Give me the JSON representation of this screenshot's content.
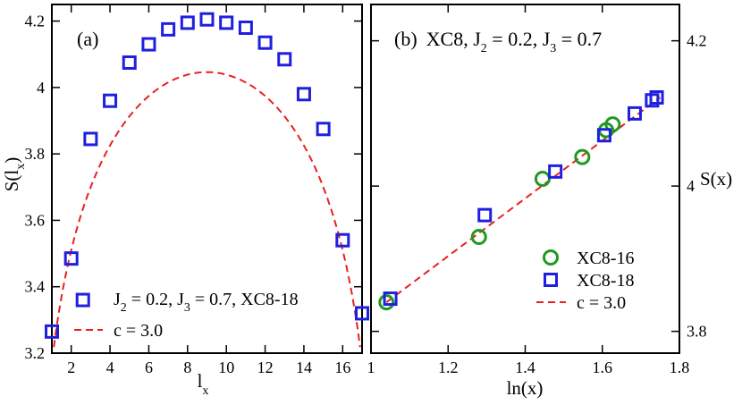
{
  "chart_data": [
    {
      "panel": "(a)",
      "type": "scatter",
      "title": "(a)",
      "xlabel": "l",
      "xlabel_sub": "x",
      "ylabel": "S(l",
      "ylabel_sub": "x",
      "ylabel_close": ")",
      "xlim": [
        1,
        17
      ],
      "ylim": [
        3.2,
        4.25
      ],
      "xticks": [
        2,
        4,
        6,
        8,
        10,
        12,
        14,
        16
      ],
      "xtick_labels": [
        "2",
        "4",
        "6",
        "8",
        "10",
        "12",
        "14",
        "16"
      ],
      "yticks": [
        3.2,
        3.4,
        3.6,
        3.8,
        4.0,
        4.2
      ],
      "ytick_labels": [
        "3.2",
        "3.4",
        "3.6",
        "3.8",
        "4",
        "4.2"
      ],
      "series": [
        {
          "name": "J2 = 0.2, J3 = 0.7, XC8-18",
          "legend_parts": [
            "J",
            "2",
            " = 0.2, J",
            "3",
            " = 0.7, XC8-18"
          ],
          "marker": "square",
          "color": "#1f1fdf",
          "x": [
            1,
            2,
            3,
            4,
            5,
            6,
            7,
            8,
            9,
            10,
            11,
            12,
            13,
            14,
            15,
            16,
            17
          ],
          "y": [
            3.265,
            3.485,
            3.845,
            3.96,
            4.075,
            4.13,
            4.175,
            4.195,
            4.205,
            4.195,
            4.18,
            4.135,
            4.085,
            3.98,
            3.875,
            3.54,
            3.32
          ]
        },
        {
          "name": "c = 3.0",
          "marker": "dashed-line",
          "color": "#e8211f",
          "formula": "S = a + (c/6) ln[(L/pi) sin(pi l / L)]",
          "c": 3.0,
          "L": 18,
          "a": 3.1735
        }
      ],
      "extra_points": [
        {
          "x": 2.6,
          "y": 3.36,
          "marker": "square",
          "note": "legend marker"
        }
      ]
    },
    {
      "panel": "(b)",
      "type": "scatter",
      "title": "(b)",
      "subtitle_parts": [
        "XC8, J",
        "2",
        " = 0.2, J",
        "3",
        " = 0.7"
      ],
      "xlabel": "ln(x)",
      "ylabel": "S(x)",
      "xlim": [
        1.0,
        1.8
      ],
      "ylim": [
        3.77,
        4.25
      ],
      "xticks": [
        1.0,
        1.2,
        1.4,
        1.6,
        1.8
      ],
      "xtick_labels": [
        "1",
        "1.2",
        "1.4",
        "1.6",
        "1.8"
      ],
      "yticks": [
        3.8,
        4.0,
        4.2
      ],
      "ytick_labels": [
        "3.8",
        "4",
        "4.2"
      ],
      "series": [
        {
          "name": "XC8-16",
          "marker": "circle",
          "color": "#1e9a1e",
          "x": [
            1.04,
            1.28,
            1.445,
            1.548,
            1.61,
            1.627
          ],
          "y": [
            3.84,
            3.93,
            4.01,
            4.04,
            4.077,
            4.085
          ]
        },
        {
          "name": "XC8-18",
          "marker": "square",
          "color": "#1f1fdf",
          "x": [
            1.05,
            1.295,
            1.478,
            1.605,
            1.684,
            1.729,
            1.741
          ],
          "y": [
            3.845,
            3.96,
            4.02,
            4.07,
            4.1,
            4.118,
            4.122
          ]
        },
        {
          "name": "c = 3.0",
          "marker": "dashed-line",
          "color": "#e8211f",
          "x": [
            1.04,
            1.75
          ],
          "y": [
            3.84,
            4.122
          ]
        }
      ]
    }
  ]
}
